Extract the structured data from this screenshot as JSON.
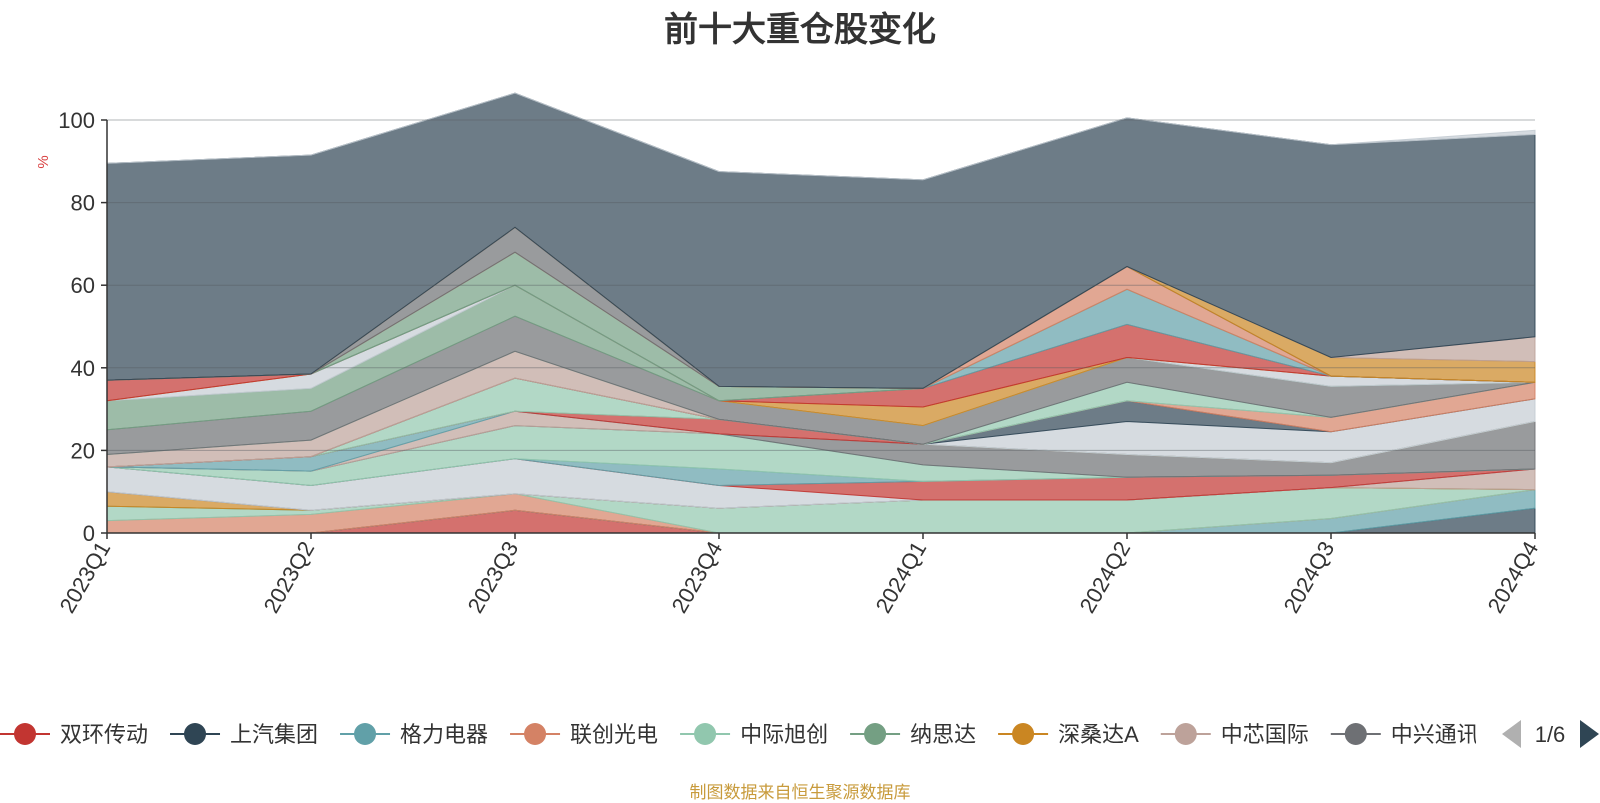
{
  "footer": {
    "source": "制图数据来自恒生聚源数据库"
  },
  "legend": {
    "page_indicator": "1/6"
  },
  "chart_data": {
    "type": "area",
    "stacked": true,
    "title": "前十大重仓股变化",
    "ylabel": "%",
    "ylim": [
      0,
      100
    ],
    "yticks": [
      0,
      20,
      40,
      60,
      80,
      100
    ],
    "grid": true,
    "legend_position": "bottom",
    "categories": [
      "2023Q1",
      "2023Q2",
      "2023Q3",
      "2023Q4",
      "2024Q1",
      "2024Q2",
      "2024Q3",
      "2024Q4"
    ],
    "series": [
      {
        "name": "双环传动",
        "color": "#c23531",
        "values": [
          0,
          0,
          5.5,
          0,
          0,
          0,
          0,
          0
        ]
      },
      {
        "name": "上汽集团",
        "color": "#2f4554",
        "values": [
          0,
          0,
          0,
          0,
          0,
          0,
          0,
          6
        ]
      },
      {
        "name": "格力电器",
        "color": "#61a0a8",
        "values": [
          0,
          0,
          0,
          0,
          0,
          0,
          3.5,
          4.5
        ]
      },
      {
        "name": "联创光电",
        "color": "#d48265",
        "values": [
          3,
          4.5,
          4,
          0,
          0,
          0,
          0,
          0
        ]
      },
      {
        "name": "中际旭创",
        "color": "#91c7ae",
        "values": [
          3.5,
          1,
          0,
          6,
          8,
          8,
          7.5,
          0
        ]
      },
      {
        "name": "纳思达",
        "color": "#749f83",
        "values": [
          0,
          0,
          0,
          0,
          0,
          0,
          0,
          0
        ]
      },
      {
        "name": "深桑达A",
        "color": "#ca8622",
        "values": [
          3.5,
          0,
          0,
          0,
          0,
          0,
          0,
          0
        ]
      },
      {
        "name": "中芯国际",
        "color": "#bda29a",
        "values": [
          0,
          0,
          0,
          0,
          0,
          0,
          0,
          5
        ]
      },
      {
        "name": "中兴通讯",
        "color": "#6e7074",
        "values": [
          0,
          0,
          0,
          0,
          0,
          0,
          0,
          0
        ]
      },
      {
        "name": "",
        "color": "#c4ccd3",
        "values": [
          6,
          6,
          8.5,
          5.5,
          0,
          0,
          0,
          0
        ]
      },
      {
        "name": "",
        "color": "#c23531",
        "values": [
          0,
          0,
          0,
          0,
          4.5,
          5.5,
          3,
          0
        ]
      },
      {
        "name": "",
        "color": "#61a0a8",
        "values": [
          0,
          0,
          0,
          4,
          0,
          0,
          0,
          0
        ]
      },
      {
        "name": "",
        "color": "#91c7ae",
        "values": [
          0,
          3.5,
          8,
          8.5,
          4,
          0,
          0,
          0
        ]
      },
      {
        "name": "",
        "color": "#6e7074",
        "values": [
          0,
          0,
          0,
          0,
          5,
          5.5,
          3,
          11.5
        ]
      },
      {
        "name": "",
        "color": "#bda29a",
        "values": [
          0,
          0,
          3.5,
          0,
          0,
          0,
          0,
          0
        ]
      },
      {
        "name": "",
        "color": "#61a0a8",
        "values": [
          0,
          3.5,
          0,
          0,
          0,
          0,
          0,
          0
        ]
      },
      {
        "name": "",
        "color": "#c23531",
        "values": [
          0,
          0,
          0,
          3.5,
          0,
          0,
          0,
          0
        ]
      },
      {
        "name": "",
        "color": "#91c7ae",
        "values": [
          0,
          0,
          8,
          0,
          0,
          0,
          0,
          0
        ]
      },
      {
        "name": "",
        "color": "#c4ccd3",
        "values": [
          0,
          0,
          0,
          0,
          0,
          8,
          7.5,
          5.5
        ]
      },
      {
        "name": "",
        "color": "#2f4554",
        "values": [
          0,
          0,
          0,
          0,
          0,
          5,
          0,
          0
        ]
      },
      {
        "name": "",
        "color": "#d48265",
        "values": [
          0,
          0,
          0,
          0,
          0,
          0,
          3.5,
          4
        ]
      },
      {
        "name": "",
        "color": "#bda29a",
        "values": [
          3,
          4,
          6.5,
          0,
          0,
          0,
          0,
          0
        ]
      },
      {
        "name": "",
        "color": "#91c7ae",
        "values": [
          0,
          0,
          0,
          0,
          0,
          4.5,
          0,
          0
        ]
      },
      {
        "name": "",
        "color": "#6e7074",
        "values": [
          6,
          7,
          8.5,
          4.5,
          4.5,
          6,
          7.5,
          0
        ]
      },
      {
        "name": "",
        "color": "#749f83",
        "values": [
          7,
          5.5,
          7.5,
          0,
          0,
          0,
          0,
          0
        ]
      },
      {
        "name": "",
        "color": "#c4ccd3",
        "values": [
          0,
          3.5,
          0,
          0,
          0,
          0,
          2.5,
          0
        ]
      },
      {
        "name": "",
        "color": "#ca8622",
        "values": [
          0,
          0,
          0,
          0,
          4.5,
          0,
          0,
          0
        ]
      },
      {
        "name": "",
        "color": "#c23531",
        "values": [
          5,
          0,
          0,
          0,
          4.5,
          8,
          0,
          0
        ]
      },
      {
        "name": "",
        "color": "#61a0a8",
        "values": [
          0,
          0,
          0,
          0,
          0,
          8.5,
          0,
          0
        ]
      },
      {
        "name": "",
        "color": "#749f83",
        "values": [
          0,
          0,
          8,
          3.5,
          0,
          0,
          0,
          0
        ]
      },
      {
        "name": "",
        "color": "#d48265",
        "values": [
          0,
          0,
          0,
          0,
          0,
          5.5,
          0,
          0
        ]
      },
      {
        "name": "",
        "color": "#6e7074",
        "values": [
          0,
          0,
          6,
          0,
          0,
          0,
          0,
          0
        ]
      },
      {
        "name": "",
        "color": "#ca8622",
        "values": [
          0,
          0,
          0,
          0,
          0,
          0,
          4.5,
          5
        ]
      },
      {
        "name": "",
        "color": "#bda29a",
        "values": [
          0,
          0,
          0,
          0,
          0,
          0,
          0,
          6
        ]
      },
      {
        "name": "",
        "color": "#2f4554",
        "values": [
          52.5,
          53,
          32.5,
          52,
          50.5,
          36,
          51.5,
          49
        ]
      },
      {
        "name": "",
        "color": "#c4ccd3",
        "values": [
          0,
          0,
          0,
          0,
          0,
          0,
          0,
          1
        ]
      }
    ],
    "legend_items": [
      "双环传动",
      "上汽集团",
      "格力电器",
      "联创光电",
      "中际旭创",
      "纳思达",
      "深桑达A",
      "中芯国际",
      "中兴通讯"
    ]
  }
}
